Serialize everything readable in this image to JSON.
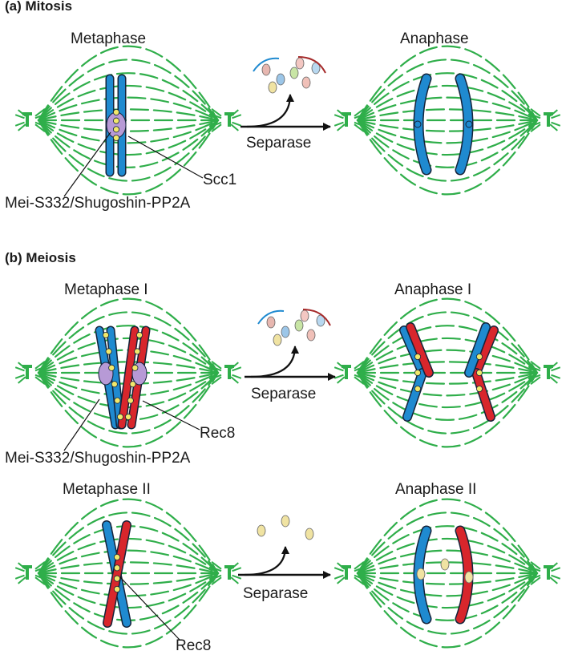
{
  "section_a": {
    "title": "(a) Mitosis",
    "left_stage": "Metaphase",
    "right_stage": "Anaphase",
    "enzyme": "Separase",
    "cohesin_label": "Scc1",
    "protector_label": "Mei-S332/Shugoshin-PP2A"
  },
  "section_b": {
    "title": "(b) Meiosis",
    "row1": {
      "left_stage": "Metaphase I",
      "right_stage": "Anaphase I",
      "enzyme": "Separase",
      "cohesin_label": "Rec8",
      "protector_label": "Mei-S332/Shugoshin-PP2A"
    },
    "row2": {
      "left_stage": "Metaphase II",
      "right_stage": "Anaphase II",
      "enzyme": "Separase",
      "cohesin_label": "Rec8"
    }
  },
  "colors": {
    "spindle": "#2fae4a",
    "chromatid_blue": "#1f8ad0",
    "chromatid_red": "#d8262c",
    "cohesin": "#f2e86b",
    "centromere": "#b79ad6",
    "outline": "#15233a"
  }
}
